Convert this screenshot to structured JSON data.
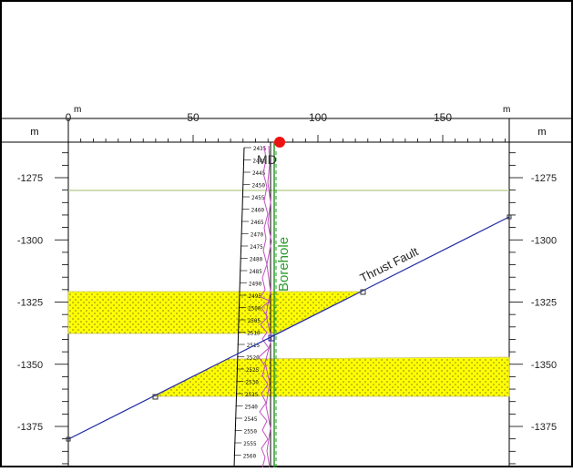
{
  "top_axis": {
    "unit_left": "m",
    "unit_right": "m",
    "ticks": [
      {
        "value": 0,
        "label": "0"
      },
      {
        "value": 50,
        "label": "50"
      },
      {
        "value": 100,
        "label": "100"
      },
      {
        "value": 150,
        "label": "150"
      }
    ]
  },
  "side_axis": {
    "unit_left": "m",
    "unit_right": "m",
    "ticks": [
      {
        "value": -1275,
        "label": "-1275"
      },
      {
        "value": -1300,
        "label": "-1300"
      },
      {
        "value": -1325,
        "label": "-1325"
      },
      {
        "value": -1350,
        "label": "-1350"
      },
      {
        "value": -1375,
        "label": "-1375"
      }
    ]
  },
  "labels": {
    "md": "MD",
    "borehole": "Borehole",
    "thrust_fault": "Thrust Fault"
  },
  "colors": {
    "frame": "#000000",
    "yellow_layer": "#ffff00",
    "horizon_line": "#b5c98a",
    "fault_line": "#1f2aa0",
    "borehole": "#2a9a2a",
    "log_curve": "#c050c0",
    "md_marker": "#ee1111"
  },
  "md_track": {
    "depths": [
      "2435",
      "2440",
      "2445",
      "2450",
      "2455",
      "2460",
      "2465",
      "2470",
      "2475",
      "2480",
      "2485",
      "2490",
      "2495",
      "2500",
      "2505",
      "2510",
      "2515",
      "2520",
      "2525",
      "2530",
      "2535",
      "2540",
      "2545",
      "2550",
      "2555",
      "2560"
    ]
  }
}
